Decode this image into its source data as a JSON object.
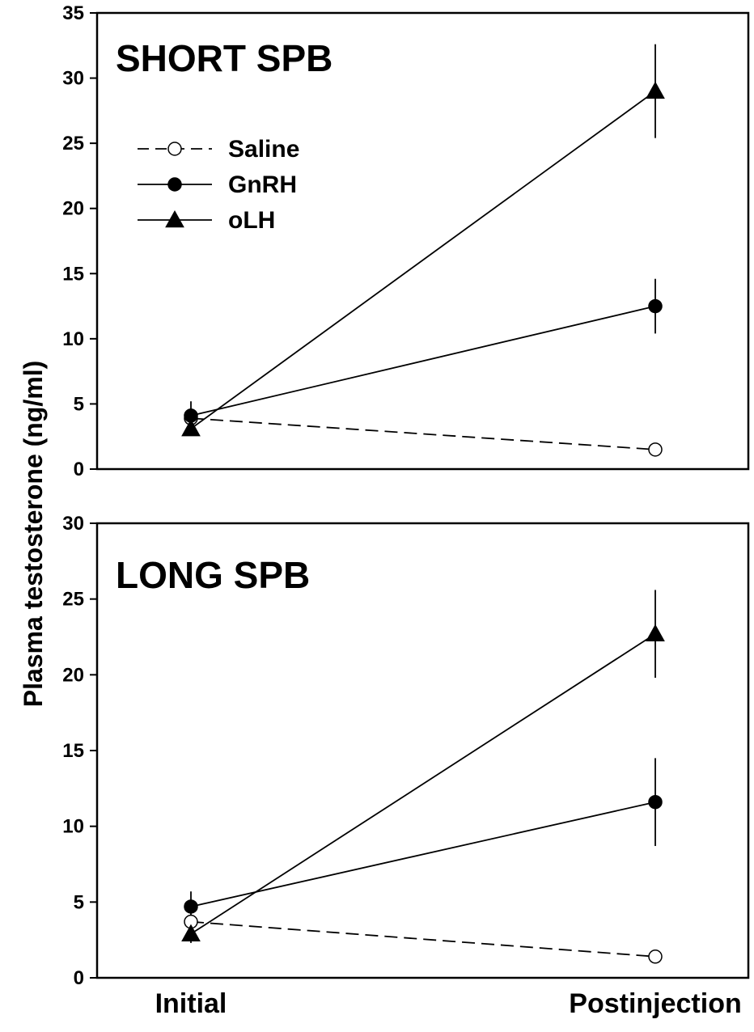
{
  "chart_data": [
    {
      "type": "line",
      "title": "SHORT SPB",
      "categories": [
        "Initial",
        "Postinjection"
      ],
      "ylabel": "Plasma testosterone (ng/ml)",
      "ylim": [
        0,
        35
      ],
      "yticks": [
        0,
        5,
        10,
        15,
        20,
        25,
        30,
        35
      ],
      "legend": "upper-left",
      "series": [
        {
          "name": "Saline",
          "marker": "open-circle",
          "line": "dashed",
          "values": [
            3.9,
            1.5
          ],
          "errors": [
            0.3,
            0.2
          ]
        },
        {
          "name": "GnRH",
          "marker": "filled-circle",
          "line": "solid",
          "values": [
            4.1,
            12.5
          ],
          "errors": [
            1.1,
            2.1
          ]
        },
        {
          "name": "oLH",
          "marker": "filled-triangle",
          "line": "solid",
          "values": [
            3.1,
            29.0
          ],
          "errors": [
            0.4,
            3.6
          ]
        }
      ]
    },
    {
      "type": "line",
      "title": "LONG SPB",
      "categories": [
        "Initial",
        "Postinjection"
      ],
      "ylabel": "Plasma testosterone (ng/ml)",
      "ylim": [
        0,
        30
      ],
      "yticks": [
        0,
        5,
        10,
        15,
        20,
        25,
        30
      ],
      "series": [
        {
          "name": "Saline",
          "marker": "open-circle",
          "line": "dashed",
          "values": [
            3.7,
            1.4
          ],
          "errors": [
            0.3,
            0.2
          ]
        },
        {
          "name": "GnRH",
          "marker": "filled-circle",
          "line": "solid",
          "values": [
            4.7,
            11.6
          ],
          "errors": [
            1.0,
            2.9
          ]
        },
        {
          "name": "oLH",
          "marker": "filled-triangle",
          "line": "solid",
          "values": [
            2.9,
            22.7
          ],
          "errors": [
            0.6,
            2.9
          ]
        }
      ]
    }
  ],
  "x_categories": [
    "Initial",
    "Postinjection"
  ],
  "y_axis_title": "Plasma testosterone (ng/ml)"
}
